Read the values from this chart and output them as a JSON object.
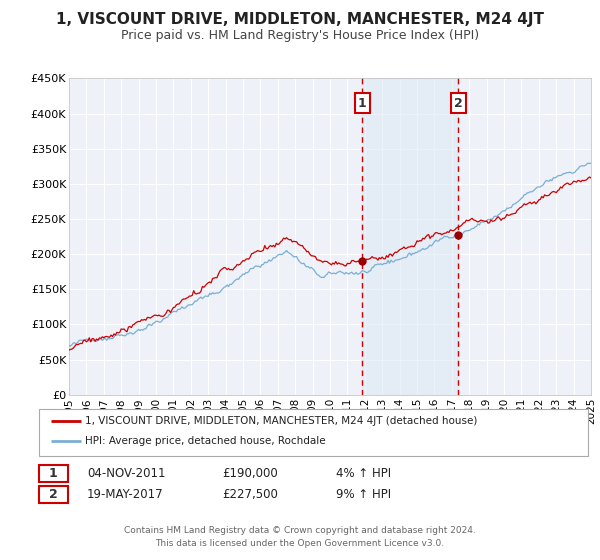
{
  "title": "1, VISCOUNT DRIVE, MIDDLETON, MANCHESTER, M24 4JT",
  "subtitle": "Price paid vs. HM Land Registry's House Price Index (HPI)",
  "title_fontsize": 11,
  "subtitle_fontsize": 9,
  "background_color": "#ffffff",
  "plot_bg_color": "#eef2f8",
  "grid_color": "#ffffff",
  "hpi_line_color": "#7aafd4",
  "price_line_color": "#cc0000",
  "marker_color": "#990000",
  "shade_color": "#dce8f5",
  "dashed_color": "#cc0000",
  "xmin": 1995,
  "xmax": 2025,
  "ymin": 0,
  "ymax": 450000,
  "yticks": [
    0,
    50000,
    100000,
    150000,
    200000,
    250000,
    300000,
    350000,
    400000,
    450000
  ],
  "ytick_labels": [
    "£0",
    "£50K",
    "£100K",
    "£150K",
    "£200K",
    "£250K",
    "£300K",
    "£350K",
    "£400K",
    "£450K"
  ],
  "xticks": [
    1995,
    1996,
    1997,
    1998,
    1999,
    2000,
    2001,
    2002,
    2003,
    2004,
    2005,
    2006,
    2007,
    2008,
    2009,
    2010,
    2011,
    2012,
    2013,
    2014,
    2015,
    2016,
    2017,
    2018,
    2019,
    2020,
    2021,
    2022,
    2023,
    2024,
    2025
  ],
  "sale1_x": 2011.84,
  "sale1_y": 190000,
  "sale2_x": 2017.38,
  "sale2_y": 227500,
  "shade_x1": 2011.84,
  "shade_x2": 2017.38,
  "legend_line1": "1, VISCOUNT DRIVE, MIDDLETON, MANCHESTER, M24 4JT (detached house)",
  "legend_line2": "HPI: Average price, detached house, Rochdale",
  "annotation1_label": "1",
  "annotation1_date": "04-NOV-2011",
  "annotation1_price": "£190,000",
  "annotation1_hpi": "4% ↑ HPI",
  "annotation2_label": "2",
  "annotation2_date": "19-MAY-2017",
  "annotation2_price": "£227,500",
  "annotation2_hpi": "9% ↑ HPI",
  "footer1": "Contains HM Land Registry data © Crown copyright and database right 2024.",
  "footer2": "This data is licensed under the Open Government Licence v3.0."
}
